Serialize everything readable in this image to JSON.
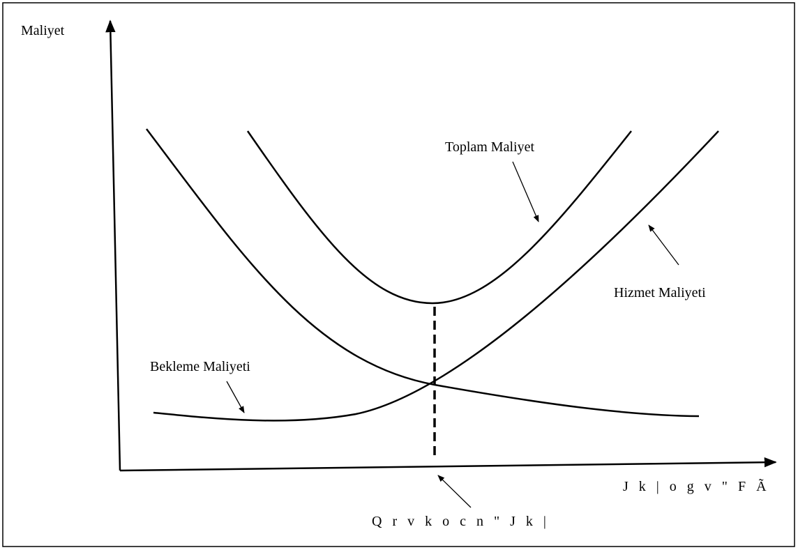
{
  "axes": {
    "y_label": "Maliyet",
    "x_label": "J k | o g v \" F Ã"
  },
  "curves": {
    "total": "Toplam Maliyet",
    "service": "Hizmet Maliyeti",
    "waiting": "Bekleme Maliyeti"
  },
  "optimum_label": "Q r v k o c n \" J k |"
}
